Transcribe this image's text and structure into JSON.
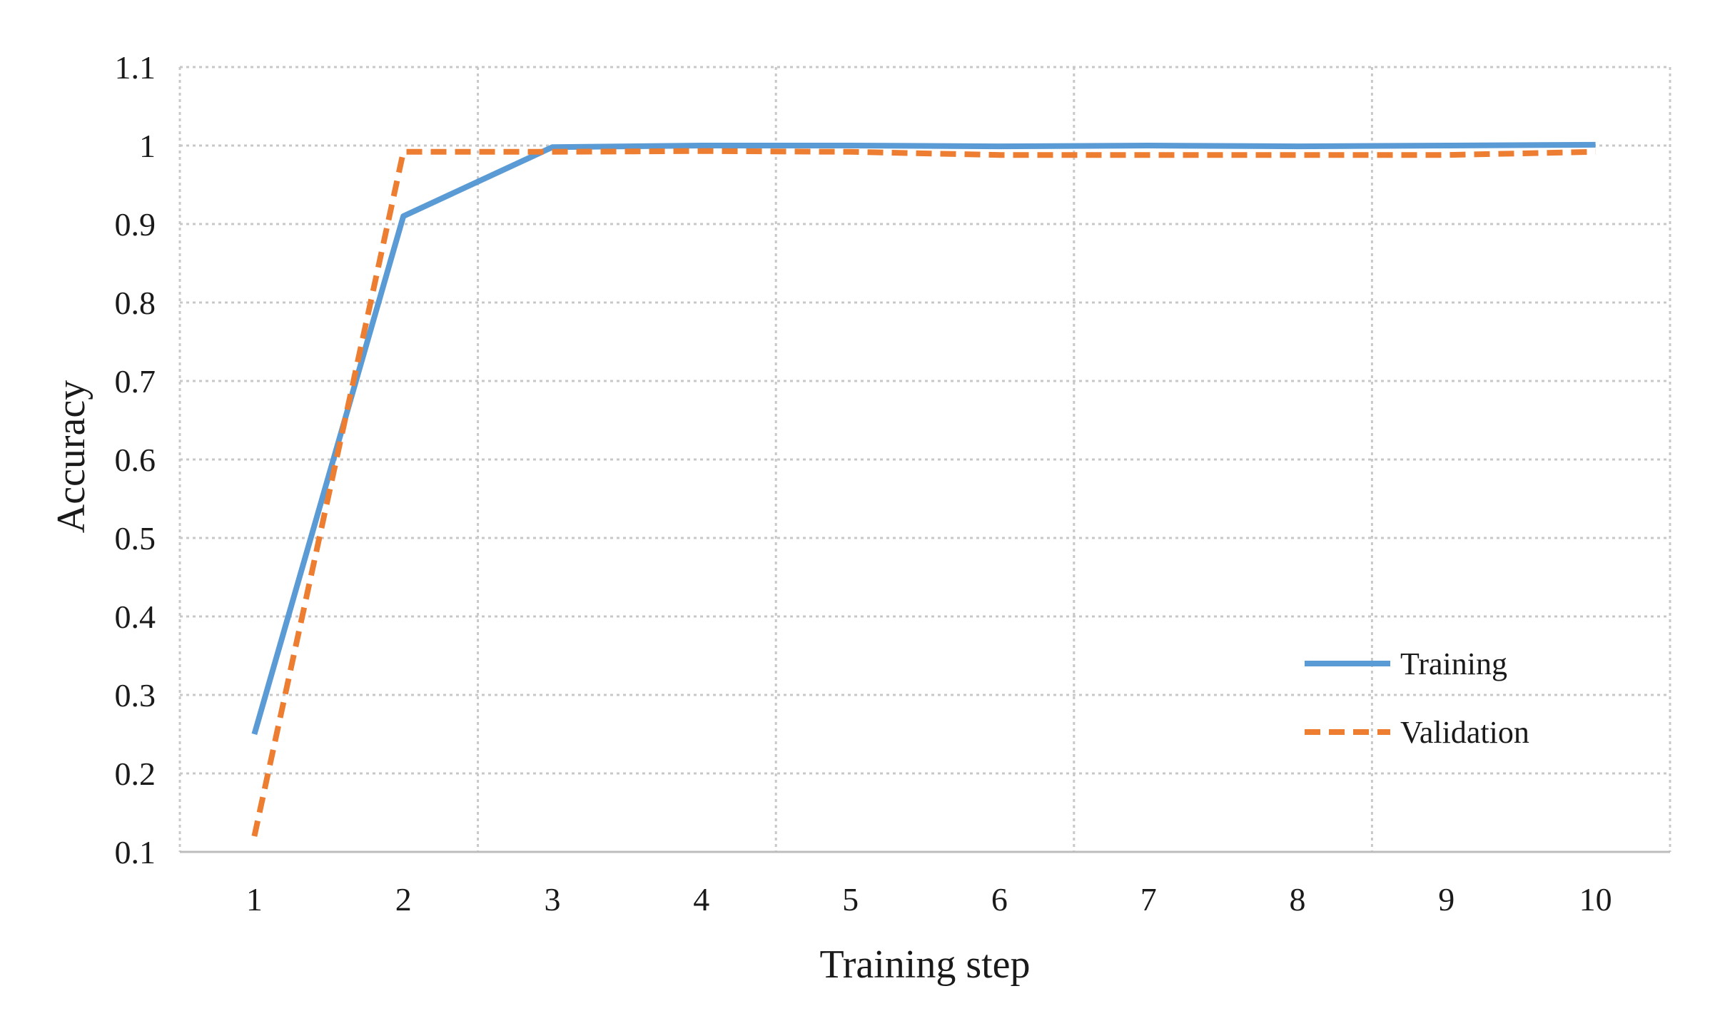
{
  "chart_data": {
    "type": "line",
    "title": "",
    "xlabel": "Training step",
    "ylabel": "Accuracy",
    "x": [
      1,
      2,
      3,
      4,
      5,
      6,
      7,
      8,
      9,
      10
    ],
    "ylim": [
      0.1,
      1.1
    ],
    "yticks": [
      "0.1",
      "0.2",
      "0.3",
      "0.4",
      "0.5",
      "0.6",
      "0.7",
      "0.8",
      "0.9",
      "1",
      "1.1"
    ],
    "grid": true,
    "legend_position": "bottom-right",
    "series": [
      {
        "name": "Training",
        "color": "#5b9bd5",
        "style": "solid",
        "values": [
          0.25,
          0.91,
          0.998,
          1.0,
          1.0,
          0.999,
          1.0,
          0.999,
          1.0,
          1.001
        ]
      },
      {
        "name": "Validation",
        "color": "#ed7d31",
        "style": "dashed",
        "values": [
          0.12,
          0.992,
          0.992,
          0.993,
          0.992,
          0.988,
          0.988,
          0.988,
          0.988,
          0.992
        ]
      }
    ]
  }
}
